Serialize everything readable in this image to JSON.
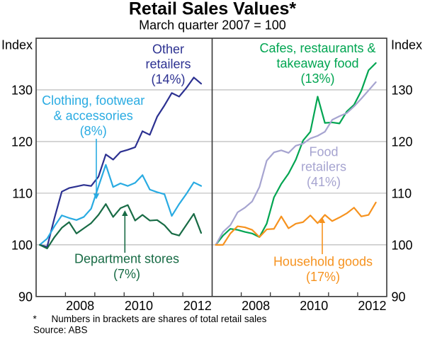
{
  "title": "Retail Sales Values*",
  "subtitle": "March quarter 2007 = 100",
  "y_axis": {
    "label_left": "Index",
    "label_right": "Index",
    "tick_labels": [
      "130",
      "120",
      "110",
      "100",
      "90"
    ],
    "tick_values": [
      130,
      120,
      110,
      100,
      90
    ],
    "min": 90,
    "max": 140
  },
  "x_axis": {
    "start_year": 2007,
    "end_year": 2013,
    "tick_years": [
      2008,
      2009,
      2010,
      2011,
      2012
    ],
    "year_labels": [
      "2008",
      "2010",
      "2012"
    ],
    "label_years": [
      2008,
      2010,
      2012
    ]
  },
  "footnotes": {
    "asterisk": "*",
    "note": "Numbers in brackets are shares of total retail sales",
    "source": "Source: ABS"
  },
  "colors": {
    "axis": "#373737",
    "grid": "#b4b4b4",
    "text": "#000000",
    "other_retailers": "#2c3191",
    "clothing": "#29abe2",
    "department_stores": "#186b45",
    "cafes": "#00a551",
    "food_retailers": "#a6a4d0",
    "household_goods": "#f6921e"
  },
  "chart_data": {
    "type": "line",
    "title": "Retail Sales Values*",
    "subtitle": "March quarter 2007 = 100",
    "ylabel": "Index",
    "ylim": [
      90,
      140
    ],
    "grid": "horizontal",
    "x_unit": "quarter",
    "x_range": "Mar quarter 2007 to Sep quarter 2012",
    "panels": [
      {
        "name": "left",
        "series": [
          {
            "name": "Other retailers",
            "share": "14%",
            "label_lines": [
              "Other",
              "retailers",
              "(14%)"
            ],
            "color_key": "other_retailers",
            "values": [
              100.0,
              99.6,
              105.2,
              110.3,
              111.0,
              111.3,
              111.6,
              111.4,
              113.2,
              117.5,
              116.5,
              118.0,
              118.4,
              118.9,
              122.0,
              121.3,
              124.8,
              127.0,
              129.4,
              128.7,
              130.4,
              132.4,
              131.2
            ]
          },
          {
            "name": "Clothing, footwear & accessories",
            "share": "8%",
            "label_lines": [
              "Clothing, footwear",
              "& accessories",
              "(8%)"
            ],
            "color_key": "clothing",
            "values": [
              100.0,
              101.2,
              103.6,
              105.7,
              105.2,
              104.8,
              105.4,
              107.0,
              111.3,
              115.5,
              111.2,
              111.9,
              111.4,
              112.0,
              113.5,
              110.7,
              110.2,
              109.8,
              105.6,
              107.9,
              109.9,
              112.1,
              111.4
            ]
          },
          {
            "name": "Department stores",
            "share": "7%",
            "label_lines": [
              "Department stores",
              "(7%)"
            ],
            "color_key": "department_stores",
            "values": [
              100.0,
              99.3,
              101.5,
              103.3,
              104.4,
              102.2,
              103.2,
              104.2,
              105.8,
              107.9,
              105.4,
              107.1,
              107.7,
              104.7,
              105.8,
              104.7,
              104.8,
              103.8,
              102.2,
              101.8,
              103.9,
              106.0,
              102.3
            ]
          }
        ]
      },
      {
        "name": "right",
        "series": [
          {
            "name": "Cafes, restaurants & takeaway food",
            "share": "13%",
            "label_lines": [
              "Cafes, restaurants &",
              "takeaway food",
              "(13%)"
            ],
            "color_key": "cafes",
            "values": [
              100.0,
              101.8,
              103.1,
              102.9,
              102.5,
              102.2,
              101.5,
              104.1,
              109.2,
              111.8,
              113.8,
              116.5,
              120.2,
              121.9,
              128.7,
              123.6,
              123.7,
              123.5,
              125.8,
              127.1,
              129.8,
              133.8,
              135.2
            ]
          },
          {
            "name": "Food retailers",
            "share": "41%",
            "label_lines": [
              "Food",
              "retailers",
              "(41%)"
            ],
            "color_key": "food_retailers",
            "values": [
              100.0,
              102.5,
              103.8,
              106.3,
              107.2,
              108.4,
              111.2,
              116.3,
              117.9,
              118.3,
              117.8,
              119.2,
              119.6,
              120.6,
              121.1,
              121.9,
              124.2,
              124.9,
              125.5,
              126.8,
              128.3,
              129.9,
              131.5
            ]
          },
          {
            "name": "Household goods",
            "share": "17%",
            "label_lines": [
              "Household goods",
              "(17%)"
            ],
            "color_key": "household_goods",
            "values": [
              100.0,
              100.0,
              102.2,
              103.6,
              103.4,
              102.9,
              101.5,
              103.0,
              103.1,
              105.5,
              103.2,
              104.1,
              104.4,
              105.7,
              104.2,
              105.8,
              104.6,
              105.3,
              106.1,
              107.2,
              105.5,
              105.8,
              108.2
            ]
          }
        ]
      }
    ]
  }
}
